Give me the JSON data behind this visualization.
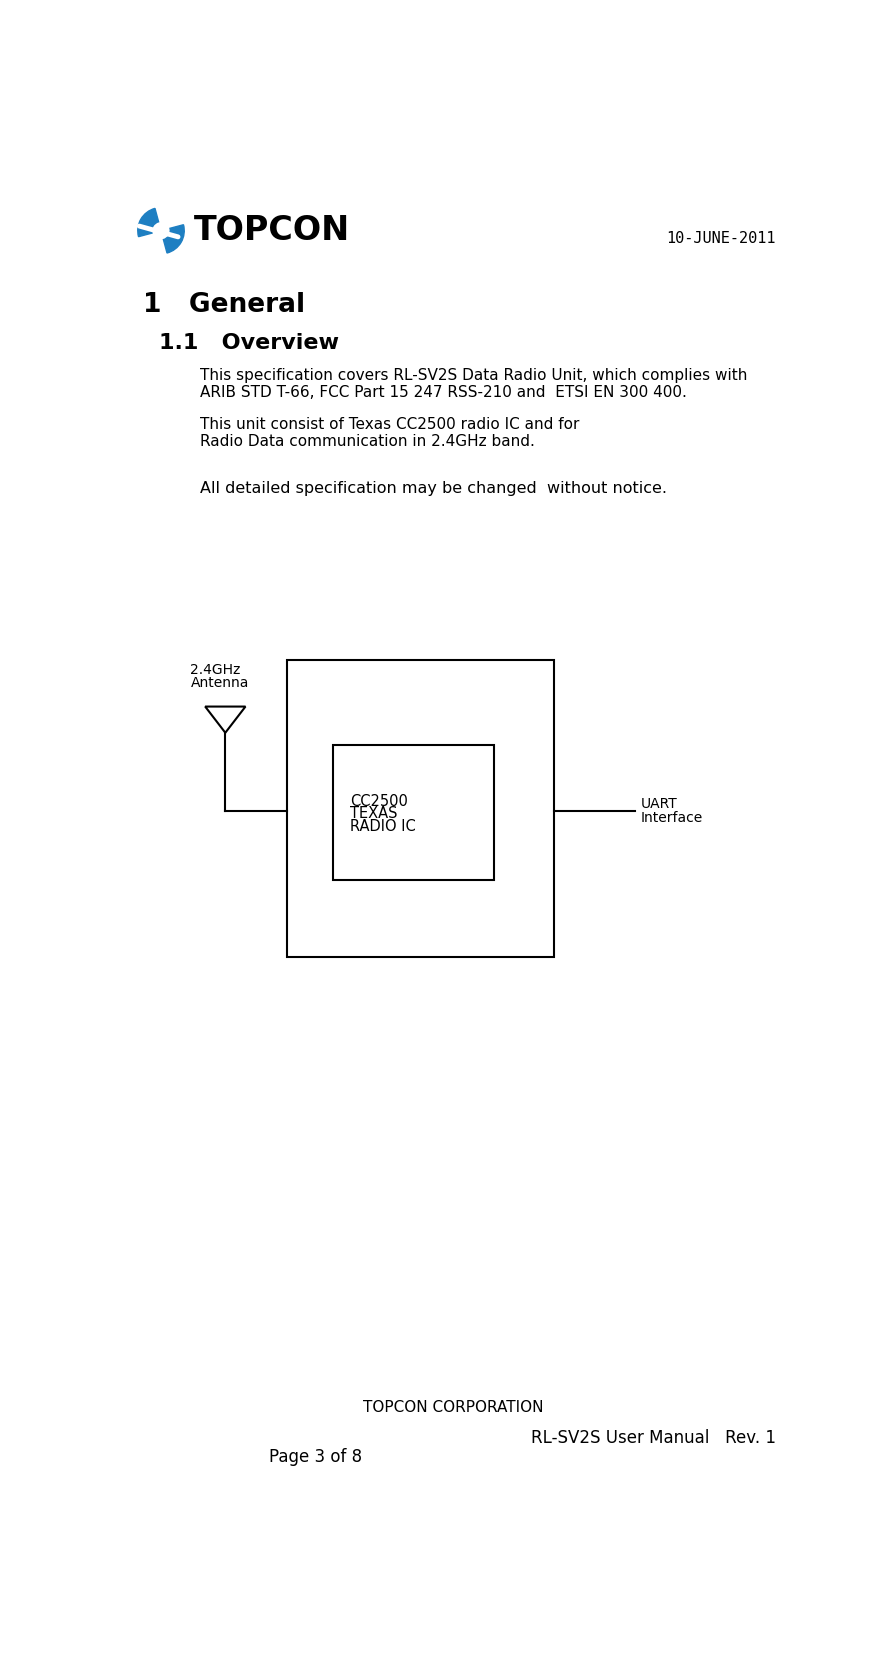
{
  "bg_color": "#ffffff",
  "date_text": "10-JUNE-2011",
  "section_title": "1   General",
  "subsection_title": "1.1   Overview",
  "para1_line1": "This specification covers RL-SV2S Data Radio Unit, which complies with",
  "para1_line2": "ARIB STD T-66, FCC Part 15 247 RSS-210 and  ETSI EN 300 400.",
  "para2_line1": "This unit consist of Texas CC2500 radio IC and for",
  "para2_line2": "Radio Data communication in 2.4GHz band.",
  "para3": "All detailed specification may be changed  without notice.",
  "antenna_label_line1": "2.4GHz",
  "antenna_label_line2": "Antenna",
  "ic_label_line1": "CC2500",
  "ic_label_line2": "TEXAS",
  "ic_label_line3": "RADIO IC",
  "uart_label_line1": "UART",
  "uart_label_line2": "Interface",
  "footer_center": "TOPCON CORPORATION",
  "footer_right": "RL-SV2S User Manual   Rev. 1",
  "footer_page": "Page 3 of 8",
  "logo_text": "TOPCON",
  "logo_color": "#1e7fc2",
  "text_color": "#000000"
}
